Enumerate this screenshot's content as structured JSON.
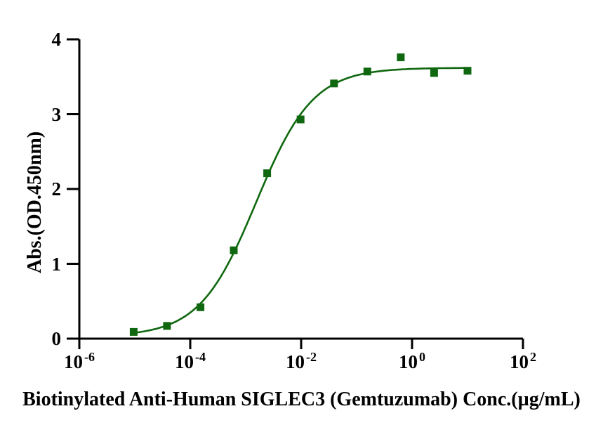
{
  "figure": {
    "background_color": "#ffffff",
    "axis_color": "#000000"
  },
  "chart_data": {
    "type": "scatter",
    "title": "",
    "xlabel": "Biotinylated Anti-Human SIGLEC3 (Gemtuzumab) Conc.(µg/mL)",
    "ylabel": "Abs.(OD.450nm)",
    "x_scale": "log10",
    "x_tick_base": "10",
    "x_tick_exponents": [
      -6,
      -4,
      -2,
      0,
      2
    ],
    "y_ticks": [
      "0",
      "1",
      "2",
      "3",
      "4"
    ],
    "ylim": [
      0,
      4
    ],
    "xlim_log10": [
      -6,
      2
    ],
    "grid": false,
    "legend_position": "none",
    "series": [
      {
        "name": "Biotinylated Anti-Human SIGLEC3 (Gemtuzumab)",
        "marker": "square",
        "color": "#0f680f",
        "x": [
          9.54e-06,
          3.81e-05,
          0.000153,
          0.00061,
          0.00244,
          0.00977,
          0.0391,
          0.156,
          0.625,
          2.5,
          10
        ],
        "y": [
          0.09,
          0.17,
          0.42,
          1.18,
          2.21,
          2.93,
          3.41,
          3.57,
          3.76,
          3.55,
          3.58
        ]
      }
    ],
    "fit_curve": {
      "model": "4PL",
      "bottom": 0.03,
      "top": 3.62,
      "ec50": 0.00155,
      "hill": 0.85,
      "color": "#0f680f",
      "x_log10_range": [
        -5.02,
        1.0
      ]
    }
  }
}
